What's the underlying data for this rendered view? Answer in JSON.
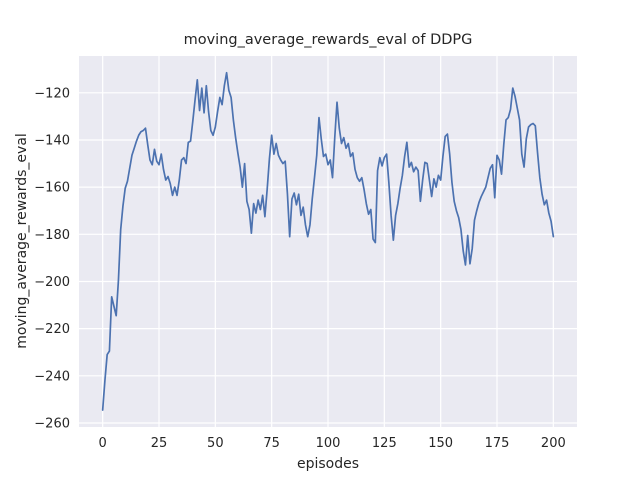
{
  "chart_data": {
    "type": "line",
    "title": "moving_average_rewards_eval of DDPG",
    "xlabel": "episodes",
    "ylabel": "moving_average_rewards_eval",
    "x_ticks": [
      0,
      25,
      50,
      75,
      100,
      125,
      150,
      175,
      200
    ],
    "y_ticks": [
      -260,
      -240,
      -220,
      -200,
      -180,
      -160,
      -140,
      -120
    ],
    "xlim": [
      -10.5,
      210.5
    ],
    "ylim": [
      -261.7,
      -104.4
    ],
    "grid": true,
    "legend": "none",
    "style": {
      "figure_bg": "#ffffff",
      "plot_bg": "#eaeaf2",
      "grid_color": "#ffffff",
      "text_color": "#262626",
      "line_color": "#4c72b0"
    },
    "series": [
      {
        "name": "moving_average_rewards_eval",
        "color": "#4c72b0",
        "x_start": 0,
        "x_step": 1,
        "values": [
          -254.5,
          -242,
          -231,
          -229.5,
          -206.5,
          -210.5,
          -214.5,
          -199.5,
          -178,
          -168,
          -160.5,
          -157.5,
          -152,
          -146.5,
          -143.5,
          -140.5,
          -138,
          -136.5,
          -136,
          -135,
          -142,
          -148.5,
          -150.5,
          -144,
          -149,
          -150.5,
          -146,
          -152.5,
          -157,
          -155.5,
          -158.5,
          -163.5,
          -160,
          -163.5,
          -157,
          -148.5,
          -147.5,
          -150,
          -141,
          -140.5,
          -132,
          -123,
          -114.5,
          -127.5,
          -118,
          -128.5,
          -117,
          -128,
          -136,
          -138,
          -134.5,
          -128,
          -122,
          -125,
          -117,
          -111.5,
          -119,
          -122,
          -131.5,
          -139,
          -145.5,
          -151.5,
          -160,
          -150,
          -166,
          -169.5,
          -179.5,
          -167,
          -171,
          -165.5,
          -169.5,
          -163.5,
          -172.5,
          -161,
          -148,
          -138,
          -146,
          -141.5,
          -146.5,
          -148.5,
          -150,
          -149,
          -163,
          -181,
          -165,
          -162.5,
          -167.5,
          -163,
          -172,
          -168.5,
          -176,
          -181,
          -176,
          -165,
          -156,
          -146.5,
          -130.5,
          -139.5,
          -147,
          -146,
          -150.5,
          -148.5,
          -156,
          -139,
          -124,
          -135,
          -141.5,
          -139,
          -143.5,
          -141.5,
          -147,
          -145.5,
          -152.5,
          -156,
          -157.5,
          -156,
          -161,
          -167,
          -171.5,
          -169.5,
          -182,
          -183.5,
          -153,
          -147.5,
          -151,
          -147.5,
          -146,
          -158,
          -172,
          -182.5,
          -172,
          -167,
          -160.5,
          -155,
          -147,
          -141,
          -151.5,
          -149.5,
          -153.5,
          -151.5,
          -153,
          -166,
          -157,
          -149.5,
          -150,
          -157,
          -164,
          -156.5,
          -160,
          -155,
          -157,
          -147,
          -138.5,
          -137.5,
          -146,
          -158,
          -166,
          -170,
          -173,
          -178,
          -187,
          -193,
          -180.5,
          -192.5,
          -186,
          -174,
          -170,
          -166.5,
          -164,
          -162,
          -160,
          -156,
          -152,
          -150.5,
          -164.5,
          -146.5,
          -148.5,
          -154.5,
          -142,
          -131.5,
          -130.5,
          -127,
          -118,
          -121.5,
          -126.5,
          -131.5,
          -146,
          -151.5,
          -139.5,
          -134.5,
          -133.5,
          -133,
          -134,
          -145.5,
          -156,
          -163,
          -167.5,
          -165.5,
          -171,
          -174.5,
          -181
        ]
      }
    ]
  }
}
